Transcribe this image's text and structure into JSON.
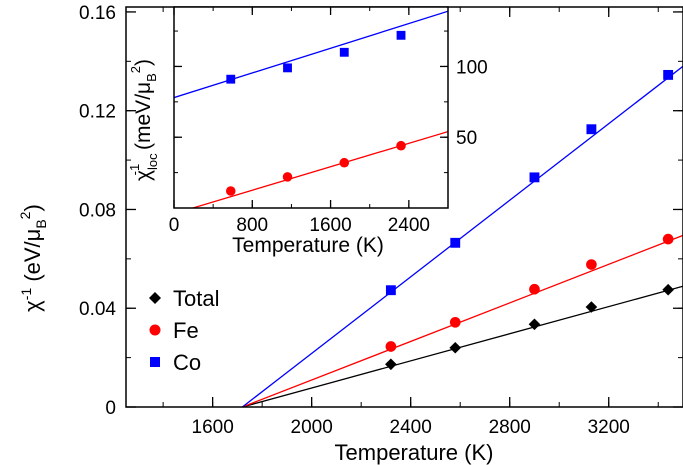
{
  "chart_data": [
    {
      "type": "line",
      "xlabel": "Temperature (K)",
      "ylabel": "χ-1 (eV/μB2)",
      "xlim": [
        1250,
        3500
      ],
      "ylim": [
        0,
        0.162
      ],
      "xticks": [
        1600,
        2000,
        2400,
        2800,
        3200
      ],
      "xtick_labels": [
        "1600",
        "2000",
        "2400",
        "2800",
        "3200"
      ],
      "yticks": [
        0,
        0.04,
        0.08,
        0.12,
        0.16
      ],
      "ytick_labels": [
        "0",
        "0.04",
        "0.08",
        "0.12",
        "0.16"
      ],
      "legend_position": "center-left",
      "series": [
        {
          "name": "Total",
          "marker": "diamond",
          "color": "#000000",
          "x": [
            2320,
            2580,
            2900,
            3130,
            3440
          ],
          "y": [
            0.0173,
            0.024,
            0.0335,
            0.0405,
            0.0475
          ],
          "fit": [
            [
              1720,
              0
            ],
            [
              3500,
              0.0489
            ]
          ]
        },
        {
          "name": "Fe",
          "marker": "circle",
          "color": "#ff0000",
          "x": [
            2320,
            2580,
            2900,
            3130,
            3440
          ],
          "y": [
            0.0245,
            0.0343,
            0.0477,
            0.0577,
            0.068
          ],
          "fit": [
            [
              1720,
              0
            ],
            [
              3500,
              0.0695
            ]
          ]
        },
        {
          "name": "Co",
          "marker": "square",
          "color": "#0000ff",
          "x": [
            2320,
            2580,
            2900,
            3130,
            3440
          ],
          "y": [
            0.0473,
            0.0665,
            0.093,
            0.1125,
            0.1345
          ],
          "fit": [
            [
              1720,
              0
            ],
            [
              3500,
              0.138
            ]
          ]
        }
      ]
    },
    {
      "type": "line",
      "xlabel": "Temperature (K)",
      "ylabel": "χloc-1 (meV/μB2)",
      "xlim": [
        0,
        2800
      ],
      "ylim": [
        0,
        142
      ],
      "xticks": [
        0,
        800,
        1600,
        2400
      ],
      "xtick_labels": [
        "0",
        "800",
        "1600",
        "2400"
      ],
      "yticks": [
        50,
        100
      ],
      "ytick_labels": [
        "50",
        "100"
      ],
      "y_axis_side": "right",
      "series": [
        {
          "name": "Co",
          "marker": "square",
          "color": "#0000ff",
          "x": [
            580,
            1160,
            1740,
            2320
          ],
          "y": [
            91,
            99,
            110,
            122
          ],
          "fit": [
            [
              0,
              78
            ],
            [
              2800,
              139
            ]
          ]
        },
        {
          "name": "Fe",
          "marker": "circle",
          "color": "#ff0000",
          "x": [
            580,
            1160,
            1740,
            2320
          ],
          "y": [
            12,
            22,
            32,
            44
          ],
          "fit": [
            [
              0,
              -4
            ],
            [
              2800,
              54
            ]
          ]
        }
      ]
    }
  ],
  "labels": {
    "main_xlabel": "Temperature (K)",
    "main_ylabel_chi": "χ",
    "main_ylabel_exp": "-1",
    "main_ylabel_unit_open": " (eV/μ",
    "main_ylabel_unit_sub": "B",
    "main_ylabel_unit_sup": "2",
    "main_ylabel_close": ")",
    "inset_xlabel": "Temperature (K)",
    "inset_ylabel_chi": "χ",
    "inset_ylabel_sub": "loc",
    "inset_ylabel_exp": "-1",
    "inset_ylabel_unit_open": " (meV/μ",
    "inset_ylabel_unit_sub": "B",
    "inset_ylabel_unit_sup": "2",
    "inset_ylabel_close": ")"
  },
  "legend": [
    {
      "label": "Total",
      "marker": "diamond",
      "color": "#000000"
    },
    {
      "label": "Fe",
      "marker": "circle",
      "color": "#ff0000"
    },
    {
      "label": "Co",
      "marker": "square",
      "color": "#0000ff"
    }
  ]
}
